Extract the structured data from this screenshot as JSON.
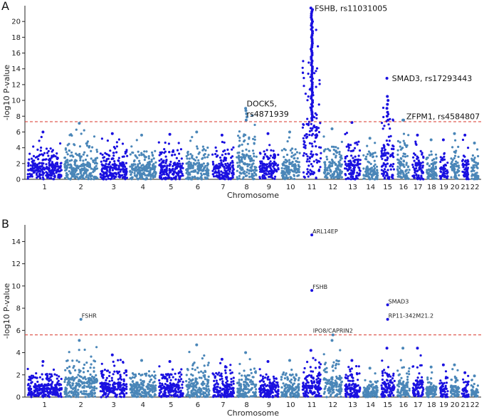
{
  "colors": {
    "dark": "#1a10e0",
    "light": "#4a86b8",
    "threshold": "#d9362a",
    "axis": "#222222"
  },
  "chart_data": [
    {
      "type": "scatter",
      "panel_label": "A",
      "title": "",
      "xlabel": "Chromosome",
      "ylabel": "-log10 P-value",
      "ylim": [
        0,
        22
      ],
      "yticks": [
        0,
        2,
        4,
        6,
        8,
        10,
        12,
        14,
        16,
        18,
        20
      ],
      "threshold": 7.3,
      "chromosomes": [
        {
          "label": "1",
          "len": 249,
          "max": 6.0
        },
        {
          "label": "2",
          "len": 243,
          "max": 7.1
        },
        {
          "label": "3",
          "len": 198,
          "max": 5.8
        },
        {
          "label": "4",
          "len": 191,
          "max": 5.6
        },
        {
          "label": "5",
          "len": 181,
          "max": 5.7
        },
        {
          "label": "6",
          "len": 171,
          "max": 6.0
        },
        {
          "label": "7",
          "len": 159,
          "max": 5.6
        },
        {
          "label": "8",
          "len": 146,
          "max": 9.0
        },
        {
          "label": "9",
          "len": 141,
          "max": 5.8
        },
        {
          "label": "10",
          "len": 136,
          "max": 6.0
        },
        {
          "label": "11",
          "len": 135,
          "max": 21.7
        },
        {
          "label": "12",
          "len": 134,
          "max": 6.4
        },
        {
          "label": "13",
          "len": 115,
          "max": 7.2
        },
        {
          "label": "14",
          "len": 107,
          "max": 5.2
        },
        {
          "label": "15",
          "len": 102,
          "max": 12.8
        },
        {
          "label": "16",
          "len": 90,
          "max": 7.5
        },
        {
          "label": "17",
          "len": 81,
          "max": 5.6
        },
        {
          "label": "18",
          "len": 78,
          "max": 5.0
        },
        {
          "label": "19",
          "len": 59,
          "max": 5.0
        },
        {
          "label": "20",
          "len": 63,
          "max": 5.8
        },
        {
          "label": "21",
          "len": 48,
          "max": 5.6
        },
        {
          "label": "22",
          "len": 51,
          "max": 4.6
        }
      ],
      "annotations": [
        {
          "text": "FSHB, rs11031005",
          "chr": "11",
          "y": 21.7
        },
        {
          "text": "SMAD3, rs17293443",
          "chr": "15",
          "y": 12.8
        },
        {
          "text": "DOCK5,",
          "chr": "8",
          "y": 9.6
        },
        {
          "text": "rs4871939",
          "chr": "8",
          "y": 8.3
        },
        {
          "text": "ZFPM1, rs4584807",
          "chr": "16",
          "y": 8.0
        }
      ]
    },
    {
      "type": "scatter",
      "panel_label": "B",
      "title": "",
      "xlabel": "Chromosome",
      "ylabel": "-log10 P-value",
      "ylim": [
        0,
        15.5
      ],
      "yticks": [
        0,
        2,
        4,
        6,
        8,
        10,
        12,
        14
      ],
      "threshold": 5.6,
      "chromosomes": [
        {
          "label": "1",
          "len": 249,
          "max": 3.2
        },
        {
          "label": "2",
          "len": 243,
          "max": 5.1
        },
        {
          "label": "3",
          "len": 198,
          "max": 3.8
        },
        {
          "label": "4",
          "len": 191,
          "max": 3.3
        },
        {
          "label": "5",
          "len": 181,
          "max": 3.2
        },
        {
          "label": "6",
          "len": 171,
          "max": 4.7
        },
        {
          "label": "7",
          "len": 159,
          "max": 3.4
        },
        {
          "label": "8",
          "len": 146,
          "max": 4.0
        },
        {
          "label": "9",
          "len": 141,
          "max": 3.2
        },
        {
          "label": "10",
          "len": 136,
          "max": 3.3
        },
        {
          "label": "11",
          "len": 135,
          "max": 4.2
        },
        {
          "label": "12",
          "len": 134,
          "max": 5.1
        },
        {
          "label": "13",
          "len": 115,
          "max": 3.3
        },
        {
          "label": "14",
          "len": 107,
          "max": 2.6
        },
        {
          "label": "15",
          "len": 102,
          "max": 4.4
        },
        {
          "label": "16",
          "len": 90,
          "max": 4.4
        },
        {
          "label": "17",
          "len": 81,
          "max": 4.4
        },
        {
          "label": "18",
          "len": 78,
          "max": 2.7
        },
        {
          "label": "19",
          "len": 59,
          "max": 2.9
        },
        {
          "label": "20",
          "len": 63,
          "max": 2.9
        },
        {
          "label": "21",
          "len": 48,
          "max": 2.2
        },
        {
          "label": "22",
          "len": 51,
          "max": 1.9
        }
      ],
      "hits": [
        {
          "text": "ARL14EP",
          "chr": "11",
          "y": 14.6
        },
        {
          "text": "FSHB",
          "chr": "11",
          "y": 9.6
        },
        {
          "text": "SMAD3",
          "chr": "15",
          "y": 8.3
        },
        {
          "text": "RP11-342M21.2",
          "chr": "15",
          "y": 7.0
        },
        {
          "text": "FSHR",
          "chr": "2",
          "y": 7.0
        },
        {
          "text": "IPO8/CAPRIN2",
          "chr": "12",
          "y": 5.6
        }
      ]
    }
  ]
}
